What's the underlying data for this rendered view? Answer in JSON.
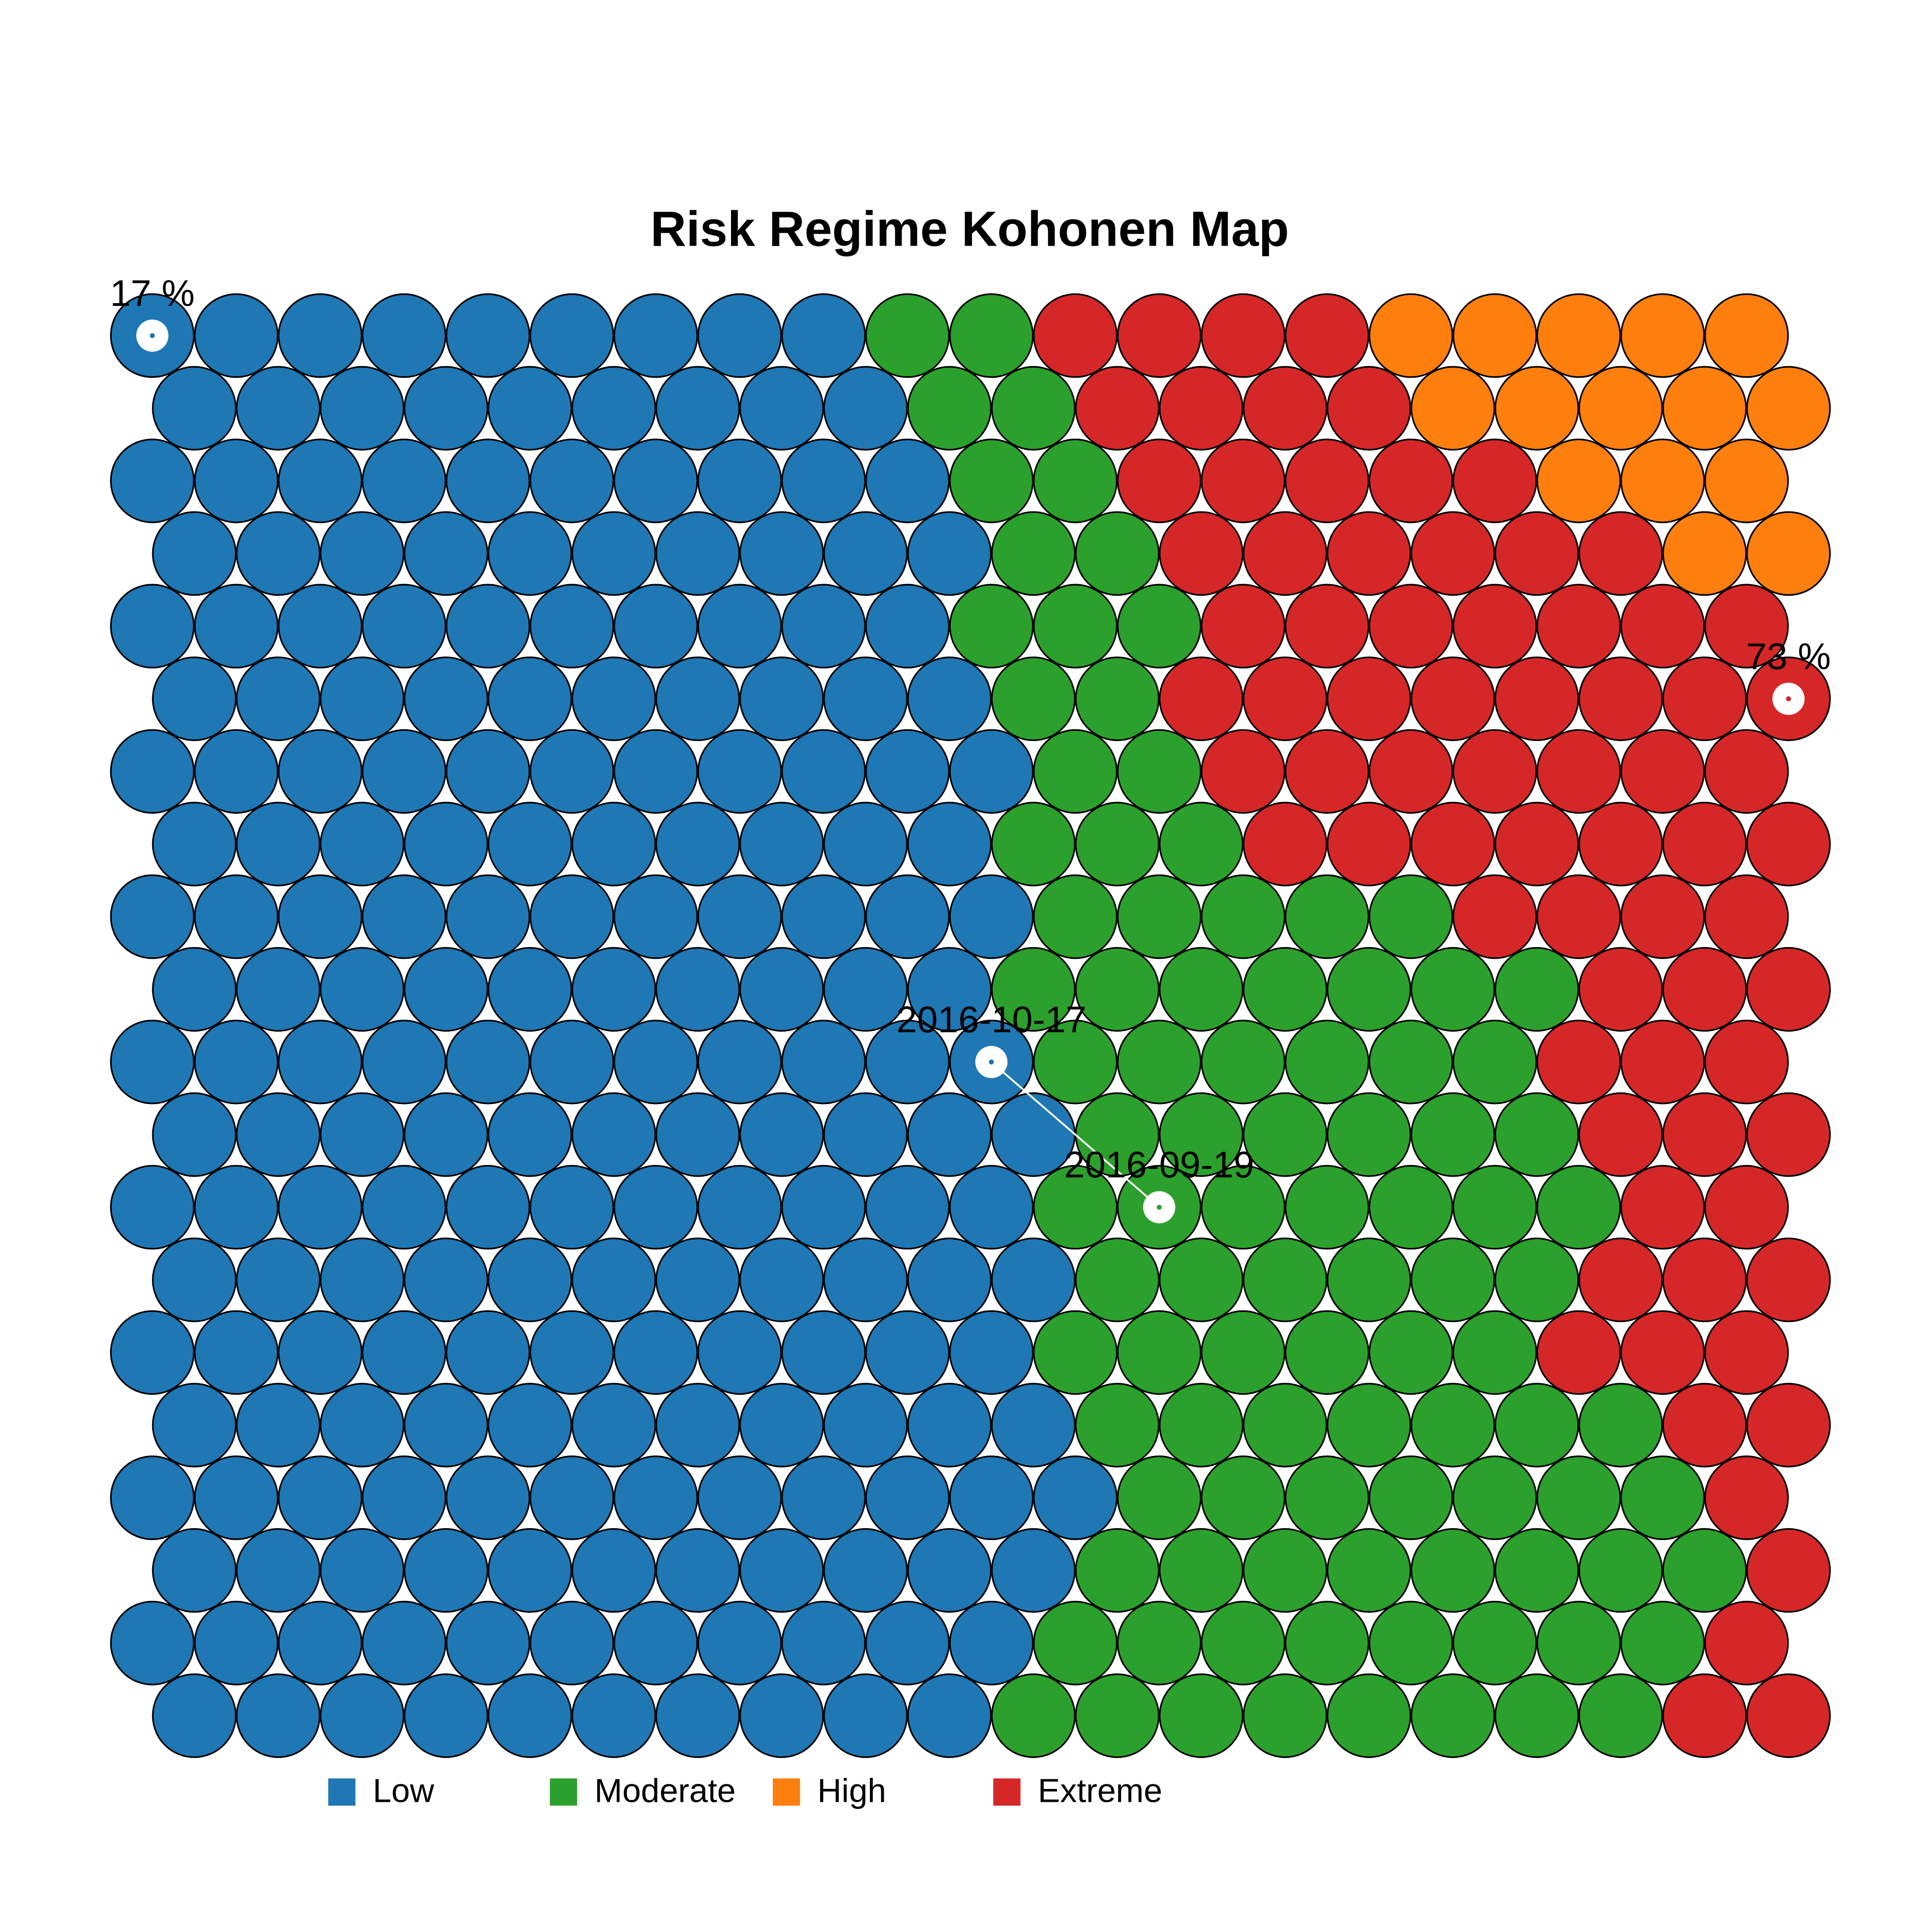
{
  "chart_data": {
    "type": "som",
    "title": "Risk Regime Kohonen Map",
    "classes": [
      {
        "name": "Low",
        "color": "#1f77b4"
      },
      {
        "name": "Moderate",
        "color": "#2ca02c"
      },
      {
        "name": "High",
        "color": "#ff7f0e"
      },
      {
        "name": "Extreme",
        "color": "#d62728"
      }
    ],
    "grid": [
      [
        0,
        0,
        0,
        0,
        0,
        0,
        0,
        0,
        0,
        1,
        1,
        3,
        3,
        3,
        3,
        2,
        2,
        2,
        2,
        2
      ],
      [
        0,
        0,
        0,
        0,
        0,
        0,
        0,
        0,
        0,
        1,
        1,
        3,
        3,
        3,
        3,
        2,
        2,
        2,
        2,
        2
      ],
      [
        0,
        0,
        0,
        0,
        0,
        0,
        0,
        0,
        0,
        0,
        1,
        1,
        3,
        3,
        3,
        3,
        3,
        2,
        2,
        2
      ],
      [
        0,
        0,
        0,
        0,
        0,
        0,
        0,
        0,
        0,
        0,
        1,
        1,
        3,
        3,
        3,
        3,
        3,
        3,
        2,
        2
      ],
      [
        0,
        0,
        0,
        0,
        0,
        0,
        0,
        0,
        0,
        0,
        1,
        1,
        1,
        3,
        3,
        3,
        3,
        3,
        3,
        3
      ],
      [
        0,
        0,
        0,
        0,
        0,
        0,
        0,
        0,
        0,
        0,
        1,
        1,
        3,
        3,
        3,
        3,
        3,
        3,
        3,
        3
      ],
      [
        0,
        0,
        0,
        0,
        0,
        0,
        0,
        0,
        0,
        0,
        0,
        1,
        1,
        3,
        3,
        3,
        3,
        3,
        3,
        3
      ],
      [
        0,
        0,
        0,
        0,
        0,
        0,
        0,
        0,
        0,
        0,
        1,
        1,
        1,
        3,
        3,
        3,
        3,
        3,
        3,
        3
      ],
      [
        0,
        0,
        0,
        0,
        0,
        0,
        0,
        0,
        0,
        0,
        0,
        1,
        1,
        1,
        1,
        1,
        3,
        3,
        3,
        3
      ],
      [
        0,
        0,
        0,
        0,
        0,
        0,
        0,
        0,
        0,
        0,
        1,
        1,
        1,
        1,
        1,
        1,
        1,
        3,
        3,
        3
      ],
      [
        0,
        0,
        0,
        0,
        0,
        0,
        0,
        0,
        0,
        0,
        0,
        1,
        1,
        1,
        1,
        1,
        1,
        3,
        3,
        3
      ],
      [
        0,
        0,
        0,
        0,
        0,
        0,
        0,
        0,
        0,
        0,
        0,
        1,
        1,
        1,
        1,
        1,
        1,
        3,
        3,
        3
      ],
      [
        0,
        0,
        0,
        0,
        0,
        0,
        0,
        0,
        0,
        0,
        0,
        1,
        1,
        1,
        1,
        1,
        1,
        1,
        3,
        3
      ],
      [
        0,
        0,
        0,
        0,
        0,
        0,
        0,
        0,
        0,
        0,
        0,
        1,
        1,
        1,
        1,
        1,
        1,
        3,
        3,
        3
      ],
      [
        0,
        0,
        0,
        0,
        0,
        0,
        0,
        0,
        0,
        0,
        0,
        1,
        1,
        1,
        1,
        1,
        1,
        3,
        3,
        3
      ],
      [
        0,
        0,
        0,
        0,
        0,
        0,
        0,
        0,
        0,
        0,
        0,
        1,
        1,
        1,
        1,
        1,
        1,
        1,
        3,
        3
      ],
      [
        0,
        0,
        0,
        0,
        0,
        0,
        0,
        0,
        0,
        0,
        0,
        0,
        1,
        1,
        1,
        1,
        1,
        1,
        1,
        3
      ],
      [
        0,
        0,
        0,
        0,
        0,
        0,
        0,
        0,
        0,
        0,
        0,
        1,
        1,
        1,
        1,
        1,
        1,
        1,
        1,
        3
      ],
      [
        0,
        0,
        0,
        0,
        0,
        0,
        0,
        0,
        0,
        0,
        0,
        1,
        1,
        1,
        1,
        1,
        1,
        1,
        1,
        3
      ],
      [
        0,
        0,
        0,
        0,
        0,
        0,
        0,
        0,
        0,
        0,
        1,
        1,
        1,
        1,
        1,
        1,
        1,
        1,
        3,
        3
      ]
    ],
    "quantile_markers": [
      {
        "label": "17 %",
        "row": 0,
        "col": 0
      },
      {
        "label": "73 %",
        "row": 5,
        "col": 19
      }
    ],
    "trajectory": [
      {
        "label": "2016-10-17",
        "row": 10,
        "col": 10
      },
      {
        "label": "2016-09-19",
        "row": 12,
        "col": 12
      }
    ]
  }
}
